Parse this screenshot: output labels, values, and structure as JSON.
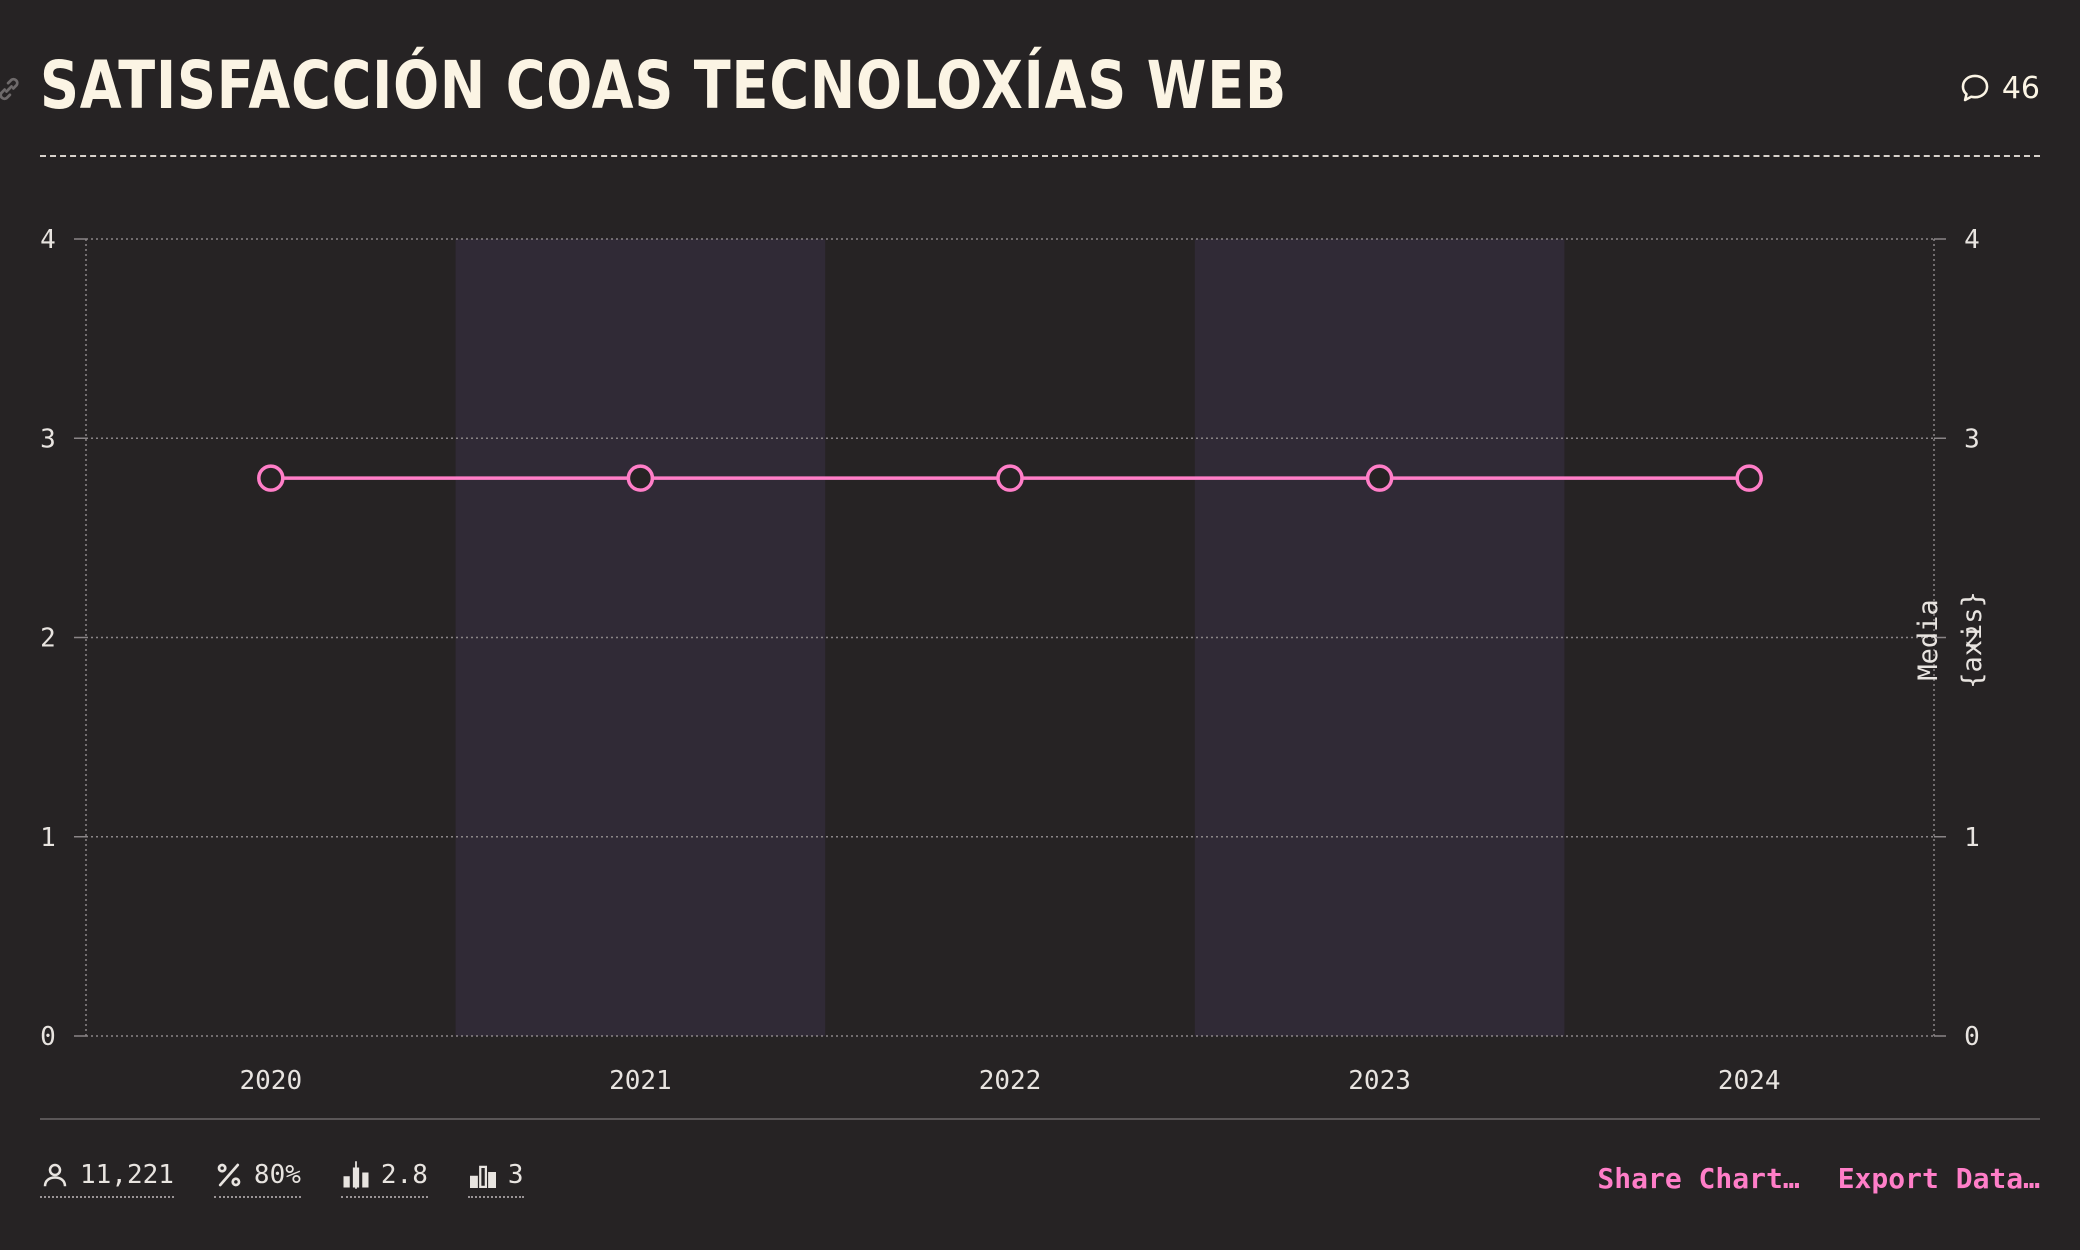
{
  "header": {
    "title": "SATISFACCIÓN COAS TECNOLOXÍAS WEB",
    "comment_count": "46",
    "icons": {
      "link": "link-icon",
      "comment": "comment-icon"
    }
  },
  "chart_data": {
    "type": "line",
    "title": "SATISFACCIÓN COAS TECNOLOXÍAS WEB",
    "categories": [
      "2020",
      "2021",
      "2022",
      "2023",
      "2024"
    ],
    "series": [
      {
        "values": [
          2.8,
          2.8,
          2.8,
          2.8,
          2.8
        ],
        "color": "#ff7ec8"
      }
    ],
    "ylim": [
      0,
      4
    ],
    "yticks": [
      "0",
      "1",
      "2",
      "3",
      "4"
    ],
    "right_axis_label_lines": [
      "Media",
      "{axis}"
    ],
    "grid": true,
    "alternating_column_bands": true,
    "band_color": "#302a36"
  },
  "footer": {
    "stats": [
      {
        "icon": "user-icon",
        "value": "11,221"
      },
      {
        "icon": "percent-icon",
        "value": "80%"
      },
      {
        "icon": "bar-chart-median-icon",
        "value": "2.8"
      },
      {
        "icon": "bar-chart-icon",
        "value": "3"
      }
    ],
    "actions": {
      "share": "Share Chart…",
      "export": "Export Data…"
    }
  },
  "colors": {
    "background": "#262324",
    "accent": "#ff7ec8",
    "title": "#fbf4e4"
  }
}
